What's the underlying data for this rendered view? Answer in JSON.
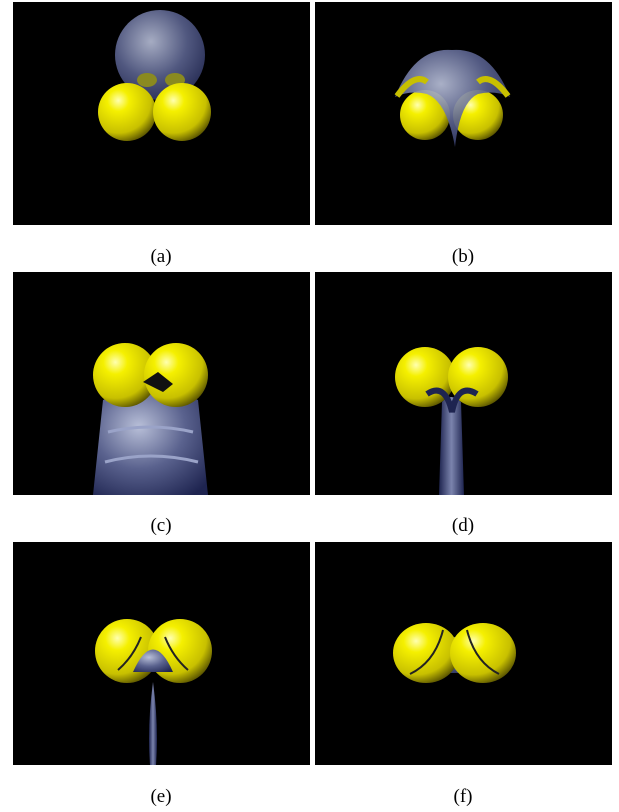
{
  "figure": {
    "panels": [
      {
        "label": "(a)"
      },
      {
        "label": "(b)"
      },
      {
        "label": "(c)"
      },
      {
        "label": "(d)"
      },
      {
        "label": "(e)"
      },
      {
        "label": "(f)"
      }
    ]
  }
}
